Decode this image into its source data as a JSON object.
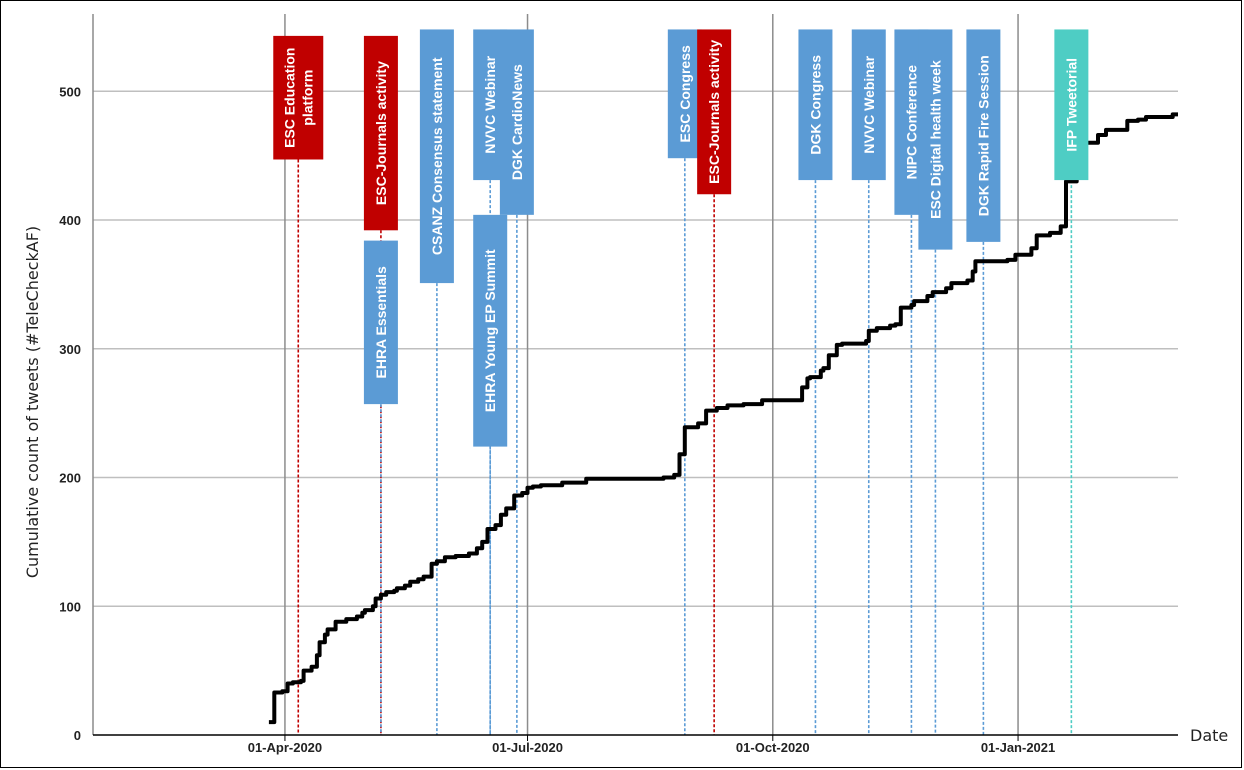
{
  "chart_data": {
    "type": "line",
    "title": "",
    "xlabel": "Date",
    "ylabel": "Cumulative count of tweets (#TeleCheckAF)",
    "ylim": [
      0,
      560
    ],
    "yticks": [
      0,
      100,
      200,
      300,
      400,
      500
    ],
    "xlim": [
      "2020-01-20",
      "2021-03-02"
    ],
    "xticks": [
      {
        "date": "2020-04-01",
        "label": "01-Apr-2020"
      },
      {
        "date": "2020-07-01",
        "label": "01-Jul-2020"
      },
      {
        "date": "2020-10-01",
        "label": "01-Oct-2020"
      },
      {
        "date": "2021-01-01",
        "label": "01-Jan-2021"
      }
    ],
    "grid": "horizontal and vertical",
    "colors": {
      "line": "#000000",
      "esc_red": "#c00000",
      "blue": "#5b9bd5",
      "teal": "#4ecdc4",
      "grid": "#bfbfbf"
    },
    "series": [
      {
        "x": [
          "2020-03-26",
          "2020-03-28",
          "2020-03-29",
          "2020-03-31",
          "2020-04-02",
          "2020-04-04",
          "2020-04-07",
          "2020-04-08",
          "2020-04-11",
          "2020-04-13",
          "2020-04-14",
          "2020-04-16",
          "2020-04-17",
          "2020-04-20",
          "2020-04-24",
          "2020-04-28",
          "2020-04-30",
          "2020-05-01",
          "2020-05-04",
          "2020-05-05",
          "2020-05-07",
          "2020-05-09",
          "2020-05-12",
          "2020-05-13",
          "2020-05-16",
          "2020-05-18",
          "2020-05-21",
          "2020-05-23",
          "2020-05-26",
          "2020-05-28",
          "2020-05-31",
          "2020-06-04",
          "2020-06-09",
          "2020-06-12",
          "2020-06-14",
          "2020-06-16",
          "2020-06-19",
          "2020-06-21",
          "2020-06-23",
          "2020-06-26",
          "2020-06-29",
          "2020-07-01",
          "2020-07-03",
          "2020-07-06",
          "2020-07-14",
          "2020-07-17",
          "2020-07-23",
          "2020-07-28",
          "2020-08-21",
          "2020-08-25",
          "2020-08-27",
          "2020-08-29",
          "2020-09-03",
          "2020-09-06",
          "2020-09-10",
          "2020-09-14",
          "2020-09-20",
          "2020-09-27",
          "2020-10-11",
          "2020-10-12",
          "2020-10-14",
          "2020-10-15",
          "2020-10-19",
          "2020-10-20",
          "2020-10-22",
          "2020-10-25",
          "2020-10-27",
          "2020-11-05",
          "2020-11-06",
          "2020-11-09",
          "2020-11-14",
          "2020-11-16",
          "2020-11-18",
          "2020-11-22",
          "2020-11-23",
          "2020-11-28",
          "2020-11-30",
          "2020-12-05",
          "2020-12-07",
          "2020-12-13",
          "2020-12-15",
          "2020-12-16",
          "2020-12-28",
          "2020-12-31",
          "2021-01-06",
          "2021-01-08",
          "2021-01-13",
          "2021-01-17",
          "2021-01-19",
          "2021-01-23",
          "2021-01-24",
          "2021-01-31",
          "2021-02-03",
          "2021-02-11",
          "2021-02-15",
          "2021-02-18",
          "2021-02-28",
          "2021-03-02"
        ],
        "y": [
          10,
          33,
          33,
          34,
          40,
          41,
          42,
          50,
          53,
          62,
          72,
          78,
          82,
          88,
          90,
          92,
          95,
          97,
          100,
          106,
          109,
          111,
          112,
          114,
          116,
          119,
          121,
          123,
          133,
          135,
          138,
          139,
          141,
          145,
          150,
          160,
          163,
          171,
          176,
          186,
          188,
          192,
          193,
          194,
          196,
          196,
          199,
          199,
          200,
          202,
          218,
          239,
          242,
          252,
          254,
          256,
          257,
          260,
          260,
          270,
          277,
          278,
          283,
          285,
          295,
          303,
          304,
          306,
          314,
          316,
          318,
          319,
          332,
          334,
          337,
          341,
          344,
          347,
          351,
          353,
          360,
          368,
          369,
          373,
          378,
          388,
          390,
          395,
          430,
          450,
          460,
          466,
          470,
          477,
          478,
          480,
          482,
          482
        ]
      }
    ],
    "events": [
      {
        "label": "ESC Education platform",
        "lines": [
          "ESC Education",
          "platform"
        ],
        "date": "2020-04-06",
        "color": "esc_red",
        "y_top": 543,
        "y_bottom": 447
      },
      {
        "label": "ESC-Journals activity",
        "lines": [
          "ESC-Journals activity"
        ],
        "date": "2020-05-07",
        "color": "esc_red",
        "y_top": 543,
        "y_bottom": 392
      },
      {
        "label": "EHRA Essentials",
        "lines": [
          "EHRA Essentials"
        ],
        "date": "2020-05-07",
        "color": "blue",
        "y_top": 384,
        "y_bottom": 257
      },
      {
        "label": "CSANZ Consensus statement",
        "lines": [
          "CSANZ Consensus statement"
        ],
        "date": "2020-05-28",
        "color": "blue",
        "y_top": 548,
        "y_bottom": 351
      },
      {
        "label": "NVVC Webinar",
        "lines": [
          "NVVC Webinar"
        ],
        "date": "2020-06-17",
        "color": "blue",
        "y_top": 548,
        "y_bottom": 431
      },
      {
        "label": "EHRA Young EP Summit",
        "lines": [
          "EHRA Young EP Summit"
        ],
        "date": "2020-06-17",
        "color": "blue",
        "y_top": 404,
        "y_bottom": 224
      },
      {
        "label": "DGK CardioNews",
        "lines": [
          "DGK CardioNews"
        ],
        "date": "2020-06-27",
        "color": "blue",
        "y_top": 548,
        "y_bottom": 404
      },
      {
        "label": "ESC Congress",
        "lines": [
          "ESC Congress"
        ],
        "date": "2020-08-29",
        "color": "blue",
        "y_top": 548,
        "y_bottom": 448
      },
      {
        "label": "ESC-Journals activity",
        "lines": [
          "ESC-Journals activity"
        ],
        "date": "2020-09-09",
        "color": "esc_red",
        "y_top": 548,
        "y_bottom": 420
      },
      {
        "label": "DGK Congress",
        "lines": [
          "DGK Congress"
        ],
        "date": "2020-10-17",
        "color": "blue",
        "y_top": 548,
        "y_bottom": 431
      },
      {
        "label": "NVVC Webinar",
        "lines": [
          "NVVC Webinar"
        ],
        "date": "2020-11-06",
        "color": "blue",
        "y_top": 548,
        "y_bottom": 431
      },
      {
        "label": "NIPC Conference",
        "lines": [
          "NIPC Conference"
        ],
        "date": "2020-11-22",
        "color": "blue",
        "y_top": 548,
        "y_bottom": 404
      },
      {
        "label": "ESC Digital health week",
        "lines": [
          "ESC Digital health week"
        ],
        "date": "2020-12-01",
        "color": "blue",
        "y_top": 548,
        "y_bottom": 377
      },
      {
        "label": "DGK Rapid Fire Session",
        "lines": [
          "DGK Rapid Fire Session"
        ],
        "date": "2020-12-19",
        "color": "blue",
        "y_top": 548,
        "y_bottom": 383
      },
      {
        "label": "IFP Tweetorial",
        "lines": [
          "IFP Tweetorial"
        ],
        "date": "2021-01-21",
        "color": "teal",
        "y_top": 548,
        "y_bottom": 431
      }
    ]
  }
}
